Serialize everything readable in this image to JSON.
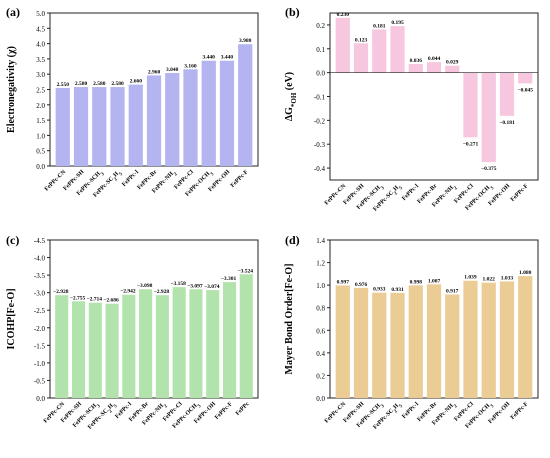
{
  "figure": {
    "colors": {
      "panel_a": "#b4b4f0",
      "panel_b": "#f6c7de",
      "panel_c": "#b2e3ad",
      "panel_d": "#ebcc94",
      "axis": "#222222"
    }
  },
  "chart_data": [
    {
      "panel_label": "(a)",
      "type": "bar",
      "ylabel": "Electronegativity (χ)",
      "xlabel": "",
      "ylim": [
        0,
        5.0
      ],
      "yticks": [
        0,
        0.5,
        1.0,
        1.5,
        2.0,
        2.5,
        3.0,
        3.5,
        4.0,
        4.5,
        5.0
      ],
      "ytick_labels": [
        "0.0",
        "0.5",
        "1.0",
        "1.5",
        "2.0",
        "2.5",
        "3.0",
        "3.5",
        "4.0",
        "4.5",
        "5.0"
      ],
      "categories": [
        "FePPc-CN",
        "FePPc-SH",
        "FePPc-SCH₃",
        "FePPc-SC₂H₅",
        "FePPc-I",
        "FePPc-Br",
        "FePPc-NH₂",
        "FePPc-Cl",
        "FePPc-OCH₃",
        "FePPc-OH",
        "FePPc-F"
      ],
      "values": [
        2.55,
        2.58,
        2.58,
        2.58,
        2.66,
        2.96,
        3.04,
        3.16,
        3.44,
        3.44,
        3.98
      ],
      "data_labels": [
        "2.550",
        "2.580",
        "2.580",
        "2.580",
        "2.660",
        "2.960",
        "3.040",
        "3.160",
        "3.440",
        "3.440",
        "3.980"
      ],
      "grid": false,
      "legend": "none"
    },
    {
      "panel_label": "(b)",
      "type": "bar",
      "ylabel": "ΔG*OH (eV)",
      "xlabel": "",
      "ylim": [
        -0.45,
        0.25
      ],
      "yticks": [
        -0.4,
        -0.3,
        -0.2,
        -0.1,
        0.0,
        0.1,
        0.2
      ],
      "ytick_labels": [
        "-0.4",
        "-0.3",
        "-0.2",
        "-0.1",
        "0.0",
        "0.1",
        "0.2"
      ],
      "categories": [
        "FePPc-CN",
        "FePPc-SH",
        "FePPc-SCH₃",
        "FePPc-SC₂H₅",
        "FePPc-I",
        "FePPc-Br",
        "FePPc-NH₂",
        "FePPc-Cl",
        "FePPc-OCH₃",
        "FePPc-OH",
        "FePPc-F"
      ],
      "values": [
        0.23,
        0.123,
        0.181,
        0.195,
        0.036,
        0.044,
        0.029,
        -0.271,
        -0.375,
        -0.181,
        -0.045
      ],
      "data_labels": [
        "0.230",
        "0.123",
        "0.181",
        "0.195",
        "0.036",
        "0.044",
        "0.029",
        "−0.271",
        "−0.375",
        "−0.181",
        "−0.045"
      ],
      "grid": false,
      "legend": "none"
    },
    {
      "panel_label": "(c)",
      "type": "bar",
      "ylabel": "ICOHP[Fe-O]",
      "xlabel": "",
      "ylim": [
        0,
        -4.5
      ],
      "inverted_y": true,
      "yticks": [
        0,
        -0.5,
        -1.0,
        -1.5,
        -2.0,
        -2.5,
        -3.0,
        -3.5,
        -4.0,
        -4.5
      ],
      "ytick_labels": [
        "0.0",
        "-0.5",
        "-1.0",
        "-1.5",
        "-2.0",
        "-2.5",
        "-3.0",
        "-3.5",
        "-4.0",
        "-4.5"
      ],
      "categories": [
        "FePPc-CN",
        "FePPc-SH",
        "FePPc-SCH₃",
        "FePPc-SC₂H₅",
        "FePPc-I",
        "FePPc-Br",
        "FePPc-NH₂",
        "FePPc-Cl",
        "FePPc-OCH₃",
        "FePPc-OH",
        "FePPc-F",
        "FePPc"
      ],
      "values": [
        -2.928,
        -2.755,
        -2.714,
        -2.686,
        -2.942,
        -3.098,
        -2.928,
        -3.158,
        -3.097,
        -3.074,
        -3.301,
        -3.524
      ],
      "data_labels": [
        "−2.928",
        "−2.755",
        "−2.714",
        "−2.686",
        "−2.942",
        "−3.098",
        "−2.928",
        "−3.158",
        "−3.097",
        "−3.074",
        "−3.301",
        "−3.524"
      ],
      "grid": false,
      "legend": "none"
    },
    {
      "panel_label": "(d)",
      "type": "bar",
      "ylabel": "Mayer Bond Order[Fe-O]",
      "xlabel": "",
      "ylim": [
        0,
        1.4
      ],
      "yticks": [
        0,
        0.2,
        0.4,
        0.6,
        0.8,
        1.0,
        1.2,
        1.4
      ],
      "ytick_labels": [
        "0.0",
        "0.2",
        "0.4",
        "0.6",
        "0.8",
        "1.0",
        "1.2",
        "1.4"
      ],
      "categories": [
        "FePPc-CN",
        "FePPc-SH",
        "FePPc-SCH₃",
        "FePPc-SC₂H₅",
        "FePPc-I",
        "FePPc-Br",
        "FePPc-NH₂",
        "FePPc-Cl",
        "FePPc-OCH₃",
        "FePPc-OH",
        "FePPc-F"
      ],
      "values": [
        0.997,
        0.976,
        0.933,
        0.931,
        0.998,
        1.007,
        0.917,
        1.039,
        1.022,
        1.033,
        1.08
      ],
      "data_labels": [
        "0.997",
        "0.976",
        "0.933",
        "0.931",
        "0.998",
        "1.007",
        "0.917",
        "1.039",
        "1.022",
        "1.033",
        "1.080"
      ],
      "grid": false,
      "legend": "none"
    }
  ]
}
